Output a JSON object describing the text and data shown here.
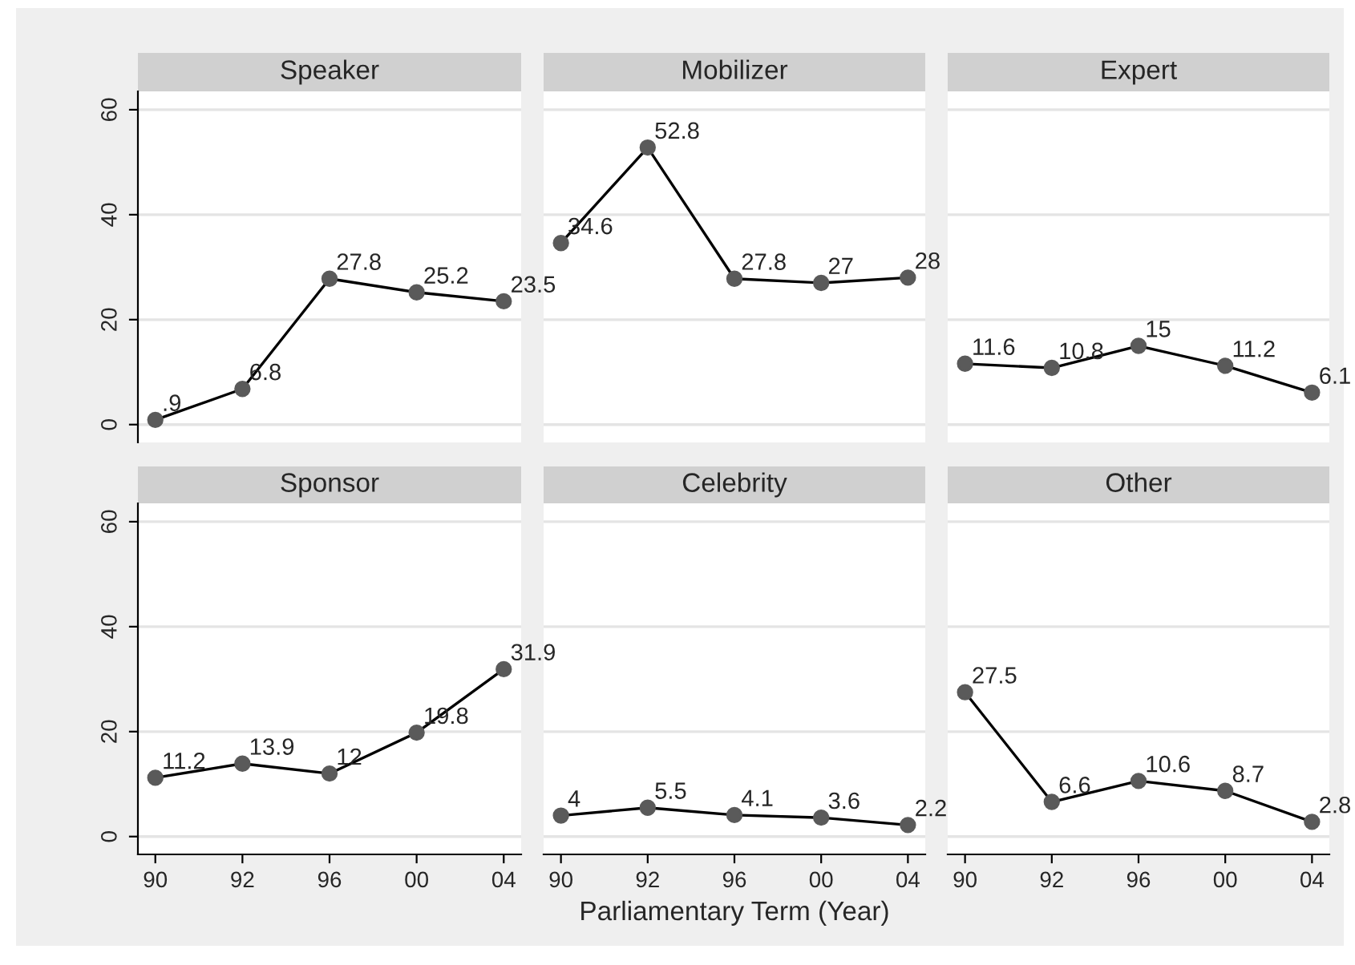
{
  "chart_data": [
    {
      "type": "line",
      "title": "Speaker",
      "categories": [
        "90",
        "92",
        "96",
        "00",
        "04"
      ],
      "series": [
        {
          "color": "#5a5a5a",
          "values": [
            0.9,
            6.8,
            27.8,
            25.2,
            23.5
          ]
        }
      ],
      "value_labels": [
        ".9",
        "6.8",
        "27.8",
        "25.2",
        "23.5"
      ],
      "ylim": [
        -3.4,
        63.5
      ],
      "yticks": [
        0,
        20,
        40,
        60
      ],
      "grid": "y",
      "marker": "circle",
      "line_style": "solid",
      "tick_labels": "y"
    },
    {
      "type": "line",
      "title": "Mobilizer",
      "categories": [
        "90",
        "92",
        "96",
        "00",
        "04"
      ],
      "series": [
        {
          "color": "#5a5a5a",
          "values": [
            34.6,
            52.8,
            27.8,
            27,
            28
          ]
        }
      ],
      "data_labels": true,
      "ylim": [
        -3.4,
        63.5
      ],
      "yticks": [
        0,
        20,
        40,
        60
      ],
      "grid": "y",
      "marker": "circle",
      "line_style": "solid",
      "tick_labels": false
    },
    {
      "type": "line",
      "title": "Expert",
      "categories": [
        "90",
        "92",
        "96",
        "00",
        "04"
      ],
      "series": [
        {
          "color": "#5a5a5a",
          "values": [
            11.6,
            10.8,
            15,
            11.2,
            6.1
          ]
        }
      ],
      "data_labels": true,
      "ylim": [
        -3.4,
        63.5
      ],
      "yticks": [
        0,
        20,
        40,
        60
      ],
      "grid": "y",
      "marker": "circle",
      "line_style": "solid",
      "tick_labels": false
    },
    {
      "type": "line",
      "title": "Sponsor",
      "categories": [
        "90",
        "92",
        "96",
        "00",
        "04"
      ],
      "series": [
        {
          "color": "#5a5a5a",
          "values": [
            11.2,
            13.9,
            12,
            19.8,
            31.9
          ]
        }
      ],
      "data_labels": true,
      "ylim": [
        -3.4,
        63.5
      ],
      "yticks": [
        0,
        20,
        40,
        60
      ],
      "grid": "y",
      "marker": "circle",
      "line_style": "solid"
    },
    {
      "type": "line",
      "title": "Celebrity",
      "xlabel": "Parliamentary Term (Year)",
      "categories": [
        "90",
        "92",
        "96",
        "00",
        "04"
      ],
      "series": [
        {
          "color": "#5a5a5a",
          "values": [
            4,
            5.5,
            4.1,
            3.6,
            2.2
          ]
        }
      ],
      "data_labels": true,
      "ylim": [
        -3.4,
        63.5
      ],
      "yticks": [
        0,
        20,
        40,
        60
      ],
      "grid": "y",
      "marker": "circle",
      "line_style": "solid",
      "tick_labels": "x"
    },
    {
      "type": "line",
      "title": "Other",
      "categories": [
        "90",
        "92",
        "96",
        "00",
        "04"
      ],
      "series": [
        {
          "color": "#5a5a5a",
          "values": [
            27.5,
            6.6,
            10.6,
            8.7,
            2.8
          ]
        }
      ],
      "data_labels": true,
      "ylim": [
        -3.4,
        63.5
      ],
      "yticks": [
        0,
        20,
        40,
        60
      ],
      "grid": "y",
      "marker": "circle",
      "line_style": "solid",
      "tick_labels": "x"
    }
  ]
}
